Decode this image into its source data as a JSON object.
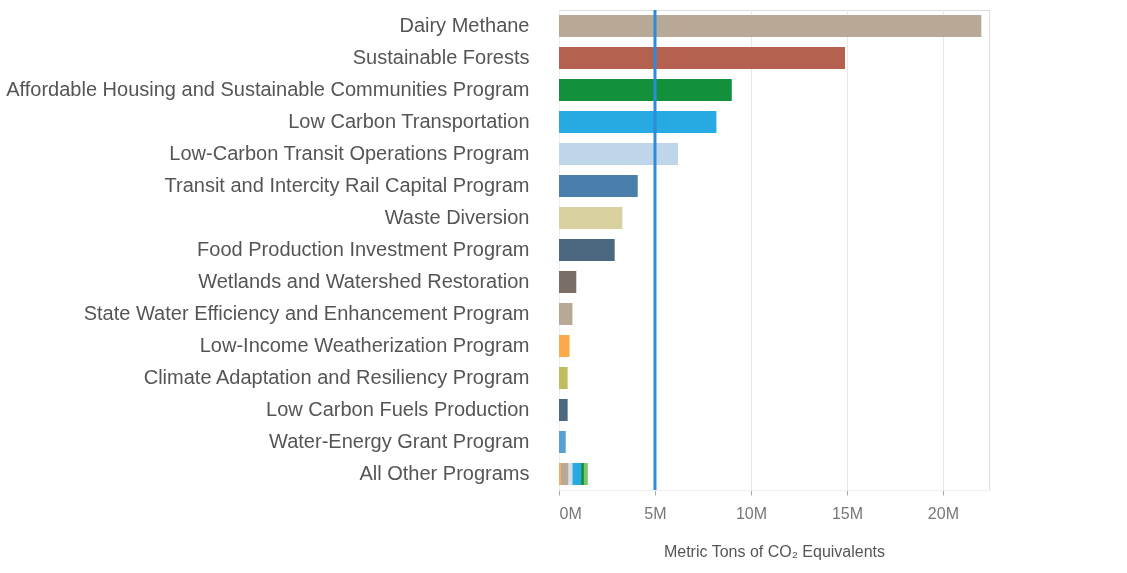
{
  "chart_data": {
    "type": "bar",
    "orientation": "horizontal",
    "stacked": true,
    "categories": [
      "Dairy Methane",
      "Sustainable Forests",
      "Affordable Housing and Sustainable Communities Program",
      "Low Carbon Transportation",
      "Low-Carbon Transit Operations Program",
      "Transit and Intercity Rail Capital Program",
      "Waste Diversion",
      "Food Production Investment Program",
      "Wetlands and Watershed Restoration",
      "State Water Efficiency and Enhancement Program",
      "Low-Income Weatherization Program",
      "Climate Adaptation and Resiliency Program",
      "Low Carbon Fuels Production",
      "Water-Energy Grant Program",
      "All Other Programs"
    ],
    "series": [
      {
        "values": [
          22.0,
          14.9,
          9.0,
          8.2,
          6.2,
          4.1,
          3.3,
          2.9,
          0.9,
          0.7,
          0.55,
          0.45,
          0.45,
          0.35,
          0.1
        ],
        "colors": [
          "#b8a896",
          "#b46150",
          "#12903c",
          "#27a9e1",
          "#bfd6ea",
          "#4a7eab",
          "#d8d09e",
          "#4c6780",
          "#7a6f66",
          "#b8a896",
          "#fbaa4b",
          "#c1bd5f",
          "#4c6780",
          "#57a0d3",
          "#fbaa4b"
        ]
      },
      {
        "values": [
          null,
          null,
          null,
          null,
          null,
          null,
          null,
          null,
          null,
          null,
          null,
          null,
          null,
          null,
          0.4
        ],
        "color": "#b8a896"
      },
      {
        "values": [
          null,
          null,
          null,
          null,
          null,
          null,
          null,
          null,
          null,
          null,
          null,
          null,
          null,
          null,
          0.2
        ],
        "color": "#d5dde6"
      },
      {
        "values": [
          null,
          null,
          null,
          null,
          null,
          null,
          null,
          null,
          null,
          null,
          null,
          null,
          null,
          null,
          0.45
        ],
        "color": "#27a9e1"
      },
      {
        "values": [
          null,
          null,
          null,
          null,
          null,
          null,
          null,
          null,
          null,
          null,
          null,
          null,
          null,
          null,
          0.15
        ],
        "color": "#12903c"
      },
      {
        "values": [
          null,
          null,
          null,
          null,
          null,
          null,
          null,
          null,
          null,
          null,
          null,
          null,
          null,
          null,
          0.2
        ],
        "color": "#7cc46c"
      }
    ],
    "xlabel": "Metric Tons of CO₂ Equivalents",
    "xlim": [
      0,
      22.4
    ],
    "xticks": [
      {
        "value": 0,
        "label": "0M"
      },
      {
        "value": 5,
        "label": "5M"
      },
      {
        "value": 10,
        "label": "10M"
      },
      {
        "value": 15,
        "label": "15M"
      },
      {
        "value": 20,
        "label": "20M"
      }
    ],
    "grid": "x",
    "ref_lines": [
      {
        "axis": "x",
        "value": 5,
        "color": "#2e8bd9"
      }
    ]
  }
}
